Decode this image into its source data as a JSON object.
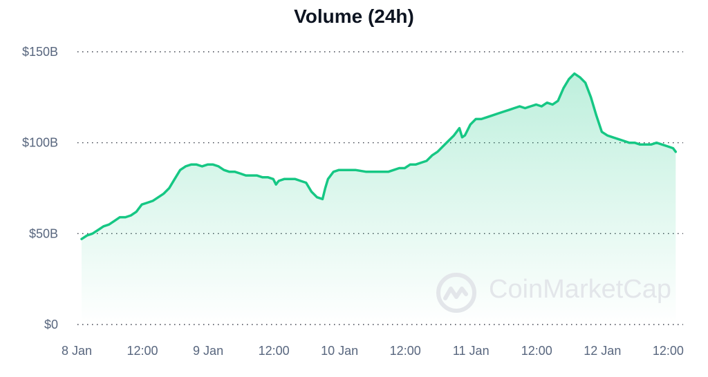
{
  "title": "Volume (24h)",
  "watermark": {
    "text": "CoinMarketCap",
    "logo": "coinmarketcap-logo-icon"
  },
  "colors": {
    "line": "#16c784",
    "fill": "#16c784",
    "grid": "#3a3f4a",
    "text": "#58667e"
  },
  "chart_data": {
    "type": "area",
    "title": "Volume (24h)",
    "xlabel": "",
    "ylabel": "",
    "x_unit": "hours since 8 Jan 00:00",
    "ylim": [
      0,
      150
    ],
    "y_unit": "USD billions",
    "y_ticks": [
      {
        "value": 0,
        "label": "$0"
      },
      {
        "value": 50,
        "label": "$50B"
      },
      {
        "value": 100,
        "label": "$100B"
      },
      {
        "value": 150,
        "label": "$150B"
      }
    ],
    "x_ticks": [
      {
        "value": 0,
        "label": "8 Jan"
      },
      {
        "value": 12,
        "label": "12:00"
      },
      {
        "value": 24,
        "label": "9 Jan"
      },
      {
        "value": 36,
        "label": "12:00"
      },
      {
        "value": 48,
        "label": "10 Jan"
      },
      {
        "value": 60,
        "label": "12:00"
      },
      {
        "value": 72,
        "label": "11 Jan"
      },
      {
        "value": 84,
        "label": "12:00"
      },
      {
        "value": 96,
        "label": "12 Jan"
      },
      {
        "value": 108,
        "label": "12:00"
      }
    ],
    "grid": true,
    "legend": "none",
    "series": [
      {
        "points": [
          [
            0.0,
            47
          ],
          [
            1.0,
            49
          ],
          [
            2.0,
            50
          ],
          [
            3.0,
            52
          ],
          [
            4.0,
            54
          ],
          [
            5.0,
            55
          ],
          [
            6.0,
            57
          ],
          [
            7.0,
            59
          ],
          [
            8.0,
            59
          ],
          [
            9.0,
            60
          ],
          [
            10.0,
            62
          ],
          [
            11.0,
            66
          ],
          [
            12.0,
            67
          ],
          [
            13.0,
            68
          ],
          [
            14.0,
            70
          ],
          [
            15.0,
            72
          ],
          [
            16.0,
            75
          ],
          [
            17.0,
            80
          ],
          [
            18.0,
            85
          ],
          [
            19.0,
            87
          ],
          [
            20.0,
            88
          ],
          [
            21.0,
            88
          ],
          [
            22.0,
            87
          ],
          [
            23.0,
            88
          ],
          [
            24.0,
            88
          ],
          [
            25.0,
            87
          ],
          [
            26.0,
            85
          ],
          [
            27.0,
            84
          ],
          [
            28.0,
            84
          ],
          [
            29.0,
            83
          ],
          [
            30.0,
            82
          ],
          [
            31.0,
            82
          ],
          [
            32.0,
            82
          ],
          [
            33.0,
            81
          ],
          [
            34.0,
            81
          ],
          [
            35.0,
            80
          ],
          [
            35.5,
            77
          ],
          [
            36.0,
            79
          ],
          [
            37.0,
            80
          ],
          [
            38.0,
            80
          ],
          [
            39.0,
            80
          ],
          [
            40.0,
            79
          ],
          [
            41.0,
            78
          ],
          [
            42.0,
            73
          ],
          [
            43.0,
            70
          ],
          [
            44.0,
            69
          ],
          [
            44.5,
            75
          ],
          [
            45.0,
            80
          ],
          [
            46.0,
            84
          ],
          [
            47.0,
            85
          ],
          [
            48.0,
            85
          ],
          [
            50.0,
            85
          ],
          [
            52.0,
            84
          ],
          [
            54.0,
            84
          ],
          [
            56.0,
            84
          ],
          [
            57.0,
            85
          ],
          [
            58.0,
            86
          ],
          [
            59.0,
            86
          ],
          [
            60.0,
            88
          ],
          [
            61.0,
            88
          ],
          [
            62.0,
            89
          ],
          [
            63.0,
            90
          ],
          [
            64.0,
            93
          ],
          [
            65.0,
            95
          ],
          [
            66.0,
            98
          ],
          [
            67.0,
            101
          ],
          [
            68.0,
            104
          ],
          [
            69.0,
            108
          ],
          [
            69.5,
            103
          ],
          [
            70.0,
            104
          ],
          [
            71.0,
            110
          ],
          [
            72.0,
            113
          ],
          [
            73.0,
            113
          ],
          [
            74.0,
            114
          ],
          [
            75.0,
            115
          ],
          [
            76.0,
            116
          ],
          [
            77.0,
            117
          ],
          [
            78.0,
            118
          ],
          [
            79.0,
            119
          ],
          [
            80.0,
            120
          ],
          [
            81.0,
            119
          ],
          [
            82.0,
            120
          ],
          [
            83.0,
            121
          ],
          [
            84.0,
            120
          ],
          [
            85.0,
            122
          ],
          [
            86.0,
            121
          ],
          [
            87.0,
            123
          ],
          [
            88.0,
            130
          ],
          [
            89.0,
            135
          ],
          [
            90.0,
            138
          ],
          [
            91.0,
            136
          ],
          [
            92.0,
            133
          ],
          [
            93.0,
            125
          ],
          [
            94.0,
            115
          ],
          [
            95.0,
            106
          ],
          [
            96.0,
            104
          ],
          [
            97.0,
            103
          ],
          [
            98.0,
            102
          ],
          [
            99.0,
            101
          ],
          [
            100.0,
            100
          ],
          [
            101.0,
            100
          ],
          [
            102.0,
            99
          ],
          [
            103.0,
            99
          ],
          [
            104.0,
            99
          ],
          [
            105.0,
            100
          ],
          [
            106.0,
            99
          ],
          [
            107.0,
            98
          ],
          [
            108.0,
            97
          ],
          [
            108.5,
            95
          ]
        ]
      }
    ]
  }
}
